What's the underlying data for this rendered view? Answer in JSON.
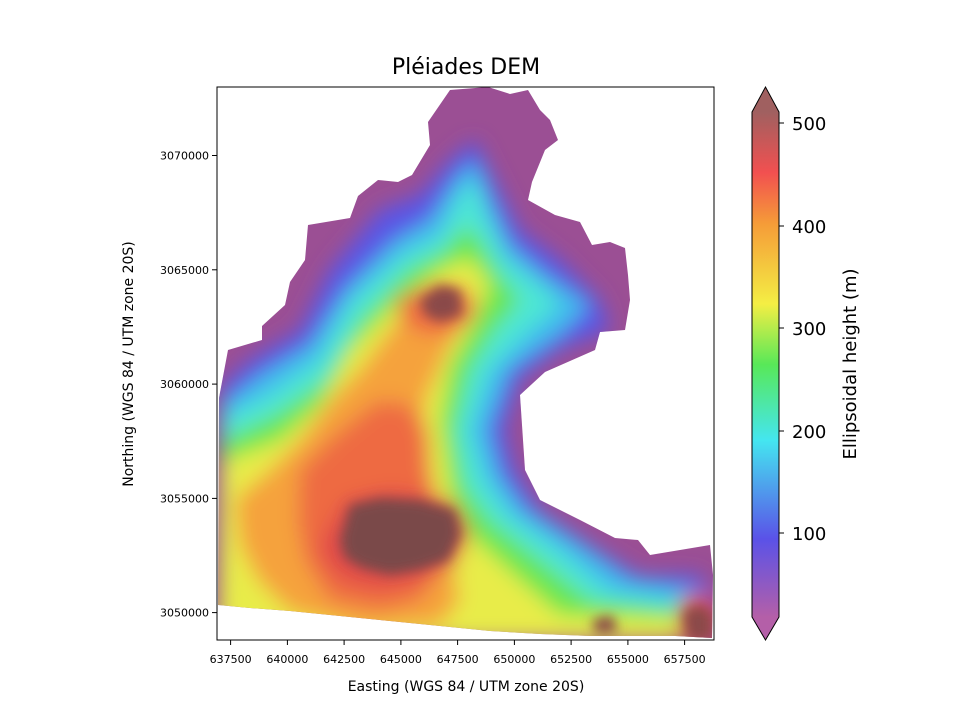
{
  "title": "Pléiades DEM",
  "xlabel": "Easting (WGS 84 / UTM zone 20S)",
  "ylabel": "Northing (WGS 84 / UTM zone 20S)",
  "x_ticks": [
    "637500",
    "640000",
    "642500",
    "645000",
    "647500",
    "650000",
    "652500",
    "655000",
    "657500"
  ],
  "y_ticks": [
    "3050000",
    "3055000",
    "3060000",
    "3065000",
    "3070000"
  ],
  "colorbar": {
    "label": "Ellipsoidal height (m)",
    "ticks": [
      "100",
      "200",
      "300",
      "400",
      "500"
    ],
    "extend": "both",
    "colors": [
      "#b45fa8",
      "#5050f0",
      "#44e6f0",
      "#58e858",
      "#f4ee44",
      "#f59b38",
      "#f25050",
      "#a06060"
    ]
  },
  "chart_data": {
    "type": "heatmap",
    "title": "Pléiades DEM",
    "xlabel": "Easting (WGS 84 / UTM zone 20S)",
    "ylabel": "Northing (WGS 84 / UTM zone 20S)",
    "xlim": [
      636700,
      658600
    ],
    "ylim": [
      3048800,
      3073000
    ],
    "clim": [
      10,
      525
    ],
    "colorbar_label": "Ellipsoidal height (m)"
  }
}
